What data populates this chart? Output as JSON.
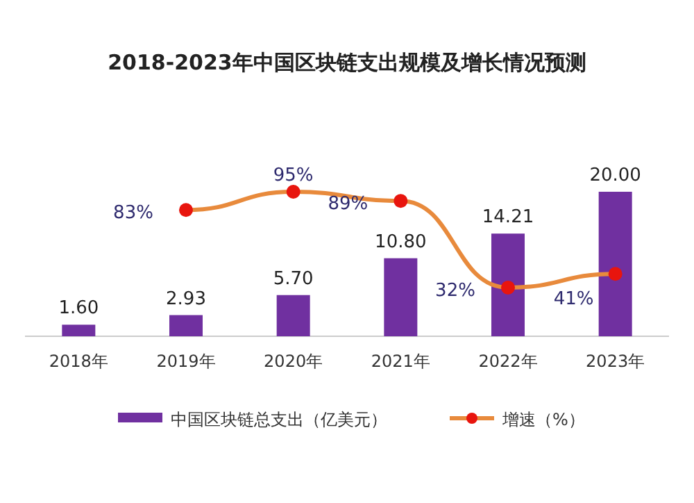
{
  "chart_data": {
    "type": "bar",
    "title": "2018-2023年中国区块链支出规模及增长情况预测",
    "categories": [
      "2018年",
      "2019年",
      "2020年",
      "2021年",
      "2022年",
      "2023年"
    ],
    "series": [
      {
        "name": "中国区块链总支出（亿美元）",
        "color": "#7030a0",
        "values": [
          1.6,
          2.93,
          5.7,
          10.8,
          14.21,
          20.0
        ],
        "value_labels": [
          "1.60",
          "2.93",
          "5.70",
          "10.80",
          "14.21",
          "20.00"
        ]
      },
      {
        "name": "增速（%）",
        "type": "line",
        "axis": "y2",
        "color": "#e88a3c",
        "marker": "circle",
        "values": [
          null,
          83,
          95,
          89,
          32,
          41
        ],
        "value_labels": [
          null,
          "83%",
          "95%",
          "89%",
          "32%",
          "41%"
        ]
      }
    ],
    "legend": "bottom"
  }
}
